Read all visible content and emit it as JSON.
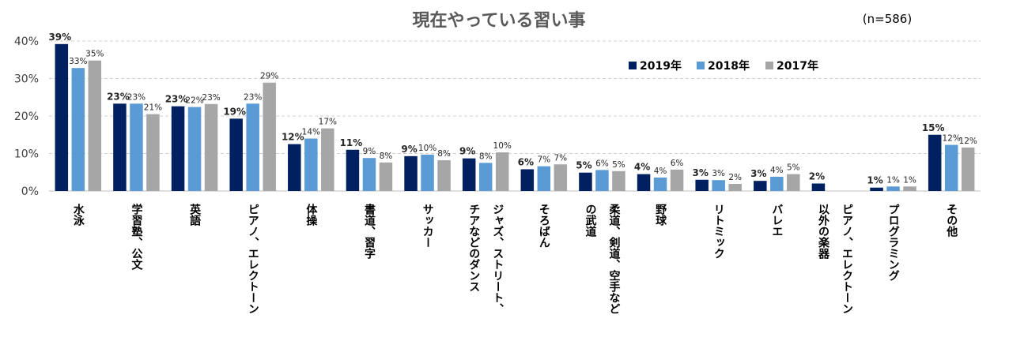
{
  "chart_data": {
    "type": "bar",
    "title": "現在やっている習い事",
    "sample_note": "(n=586)",
    "ylim": [
      0,
      40
    ],
    "yticks": [
      "0%",
      "10%",
      "20%",
      "30%",
      "40%"
    ],
    "grid": true,
    "legend_position": "top-right",
    "categories": [
      [
        "水泳"
      ],
      [
        "学習塾、公文"
      ],
      [
        "英語"
      ],
      [
        "ピアノ、エレクトーン"
      ],
      [
        "体操"
      ],
      [
        "書道、習字"
      ],
      [
        "サッカー"
      ],
      [
        "ジャズ、ストリート、",
        "チアなどのダンス"
      ],
      [
        "そろばん"
      ],
      [
        "柔道、剣道、空手など",
        "の武道"
      ],
      [
        "野球"
      ],
      [
        "リトミック"
      ],
      [
        "バレエ"
      ],
      [
        "ピアノ、エレクトーン",
        "以外の楽器"
      ],
      [
        "プログラミング"
      ],
      [
        "その他"
      ]
    ],
    "series": [
      {
        "name": "2019年",
        "color": "#002060",
        "values": [
          39,
          23,
          23,
          19,
          12,
          11,
          9,
          9,
          6,
          5,
          4,
          3,
          3,
          2,
          1,
          15
        ],
        "heights": [
          39.2,
          23.3,
          22.6,
          19.3,
          12.5,
          11.0,
          9.3,
          8.7,
          5.8,
          4.9,
          4.5,
          3.0,
          2.7,
          2.0,
          0.9,
          15.0
        ]
      },
      {
        "name": "2018年",
        "color": "#5b9bd5",
        "values": [
          33,
          23,
          22,
          23,
          14,
          9,
          10,
          8,
          7,
          6,
          4,
          3,
          4,
          null,
          1,
          12
        ],
        "heights": [
          32.8,
          23.3,
          22.4,
          23.3,
          14.0,
          8.8,
          9.7,
          7.5,
          6.6,
          5.6,
          3.6,
          2.9,
          3.8,
          null,
          1.2,
          12.3
        ]
      },
      {
        "name": "2017年",
        "color": "#a6a6a6",
        "values": [
          35,
          21,
          23,
          29,
          17,
          8,
          8,
          10,
          7,
          5,
          6,
          2,
          5,
          null,
          1,
          12
        ],
        "heights": [
          34.8,
          20.5,
          23.2,
          28.9,
          16.7,
          7.6,
          8.2,
          10.3,
          7.1,
          5.3,
          5.7,
          1.9,
          4.5,
          null,
          1.2,
          11.6
        ]
      }
    ]
  }
}
